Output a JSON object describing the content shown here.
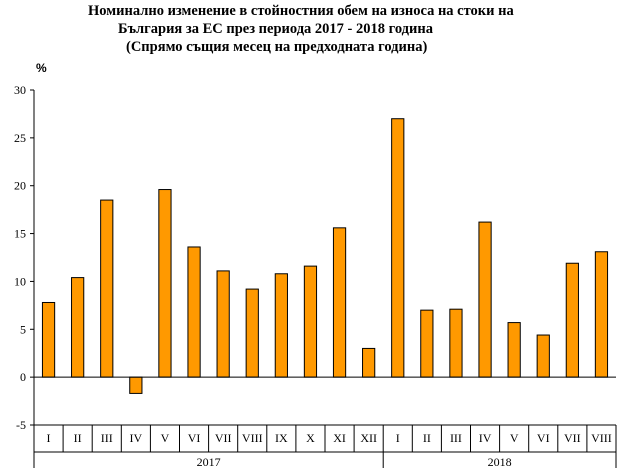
{
  "chart_data": {
    "type": "bar",
    "title_lines": [
      "Номинално изменение в стойностния обем   на износа на стоки на",
      "България за ЕС през периода 2017 - 2018 година",
      "(Спрямо същия месец на предходната година)"
    ],
    "ylabel": "%",
    "ylim": [
      -5,
      30
    ],
    "yticks": [
      "-5",
      "0",
      "5",
      "10",
      "15",
      "20",
      "25",
      "30"
    ],
    "categories": [
      "I",
      "II",
      "III",
      "IV",
      "V",
      "VI",
      "VII",
      "VIII",
      "IX",
      "X",
      "XI",
      "XII",
      "I",
      "II",
      "III",
      "IV",
      "V",
      "VI",
      "VII",
      "VIII"
    ],
    "groups": [
      {
        "label": "2017",
        "count": 12
      },
      {
        "label": "2018",
        "count": 8
      }
    ],
    "values": [
      7.8,
      10.4,
      18.5,
      -1.7,
      19.6,
      13.6,
      11.1,
      9.2,
      10.8,
      11.6,
      15.6,
      3.0,
      27.0,
      7.0,
      7.1,
      16.2,
      5.7,
      4.4,
      11.9,
      13.1
    ],
    "bar_color": "#FF9900",
    "grid": false,
    "legend": "none"
  }
}
